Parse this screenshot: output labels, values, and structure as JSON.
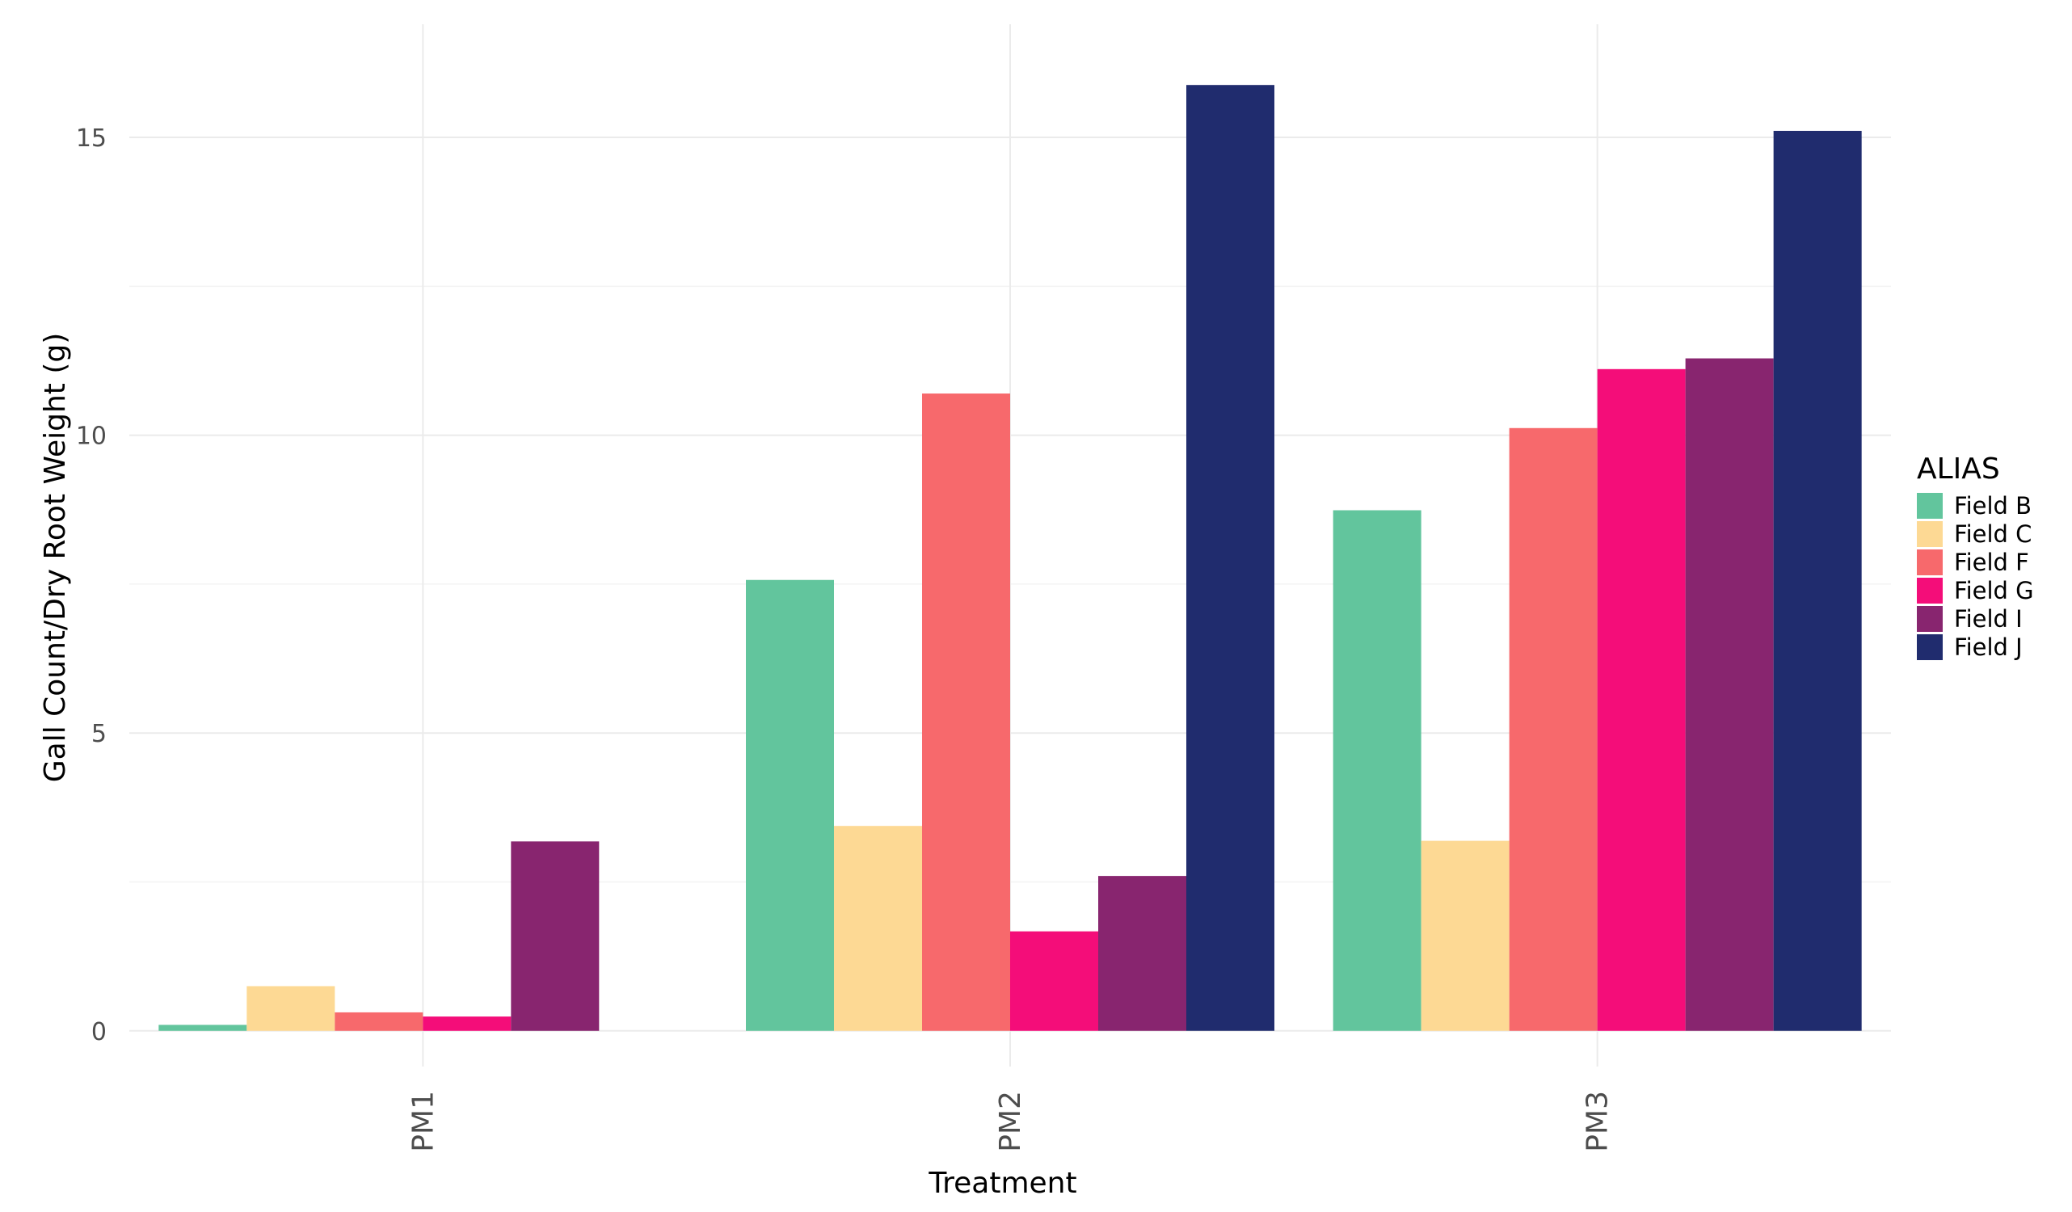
{
  "chart_data": {
    "type": "bar",
    "categories": [
      "PM1",
      "PM2",
      "PM3"
    ],
    "series": [
      {
        "name": "Field B",
        "color": "#62C59D",
        "values": [
          0.1,
          7.57,
          8.74
        ]
      },
      {
        "name": "Field C",
        "color": "#FDD994",
        "values": [
          0.75,
          3.44,
          3.19
        ]
      },
      {
        "name": "Field F",
        "color": "#F7696C",
        "values": [
          0.31,
          10.7,
          10.12
        ]
      },
      {
        "name": "Field G",
        "color": "#F40D79",
        "values": [
          0.24,
          1.67,
          11.11
        ]
      },
      {
        "name": "Field I",
        "color": "#88256F",
        "values": [
          3.18,
          2.6,
          11.29
        ]
      },
      {
        "name": "Field J",
        "color": "#202C6E",
        "values": [
          null,
          15.88,
          15.11
        ]
      }
    ],
    "xlabel": "Treatment",
    "ylabel": "Gall Count/Dry Root Weight (g)",
    "ylim": [
      -0.6,
      16.9
    ],
    "yticks": [
      0,
      5,
      10,
      15
    ],
    "grid": true,
    "legend": {
      "title": "ALIAS",
      "position": "right"
    }
  }
}
